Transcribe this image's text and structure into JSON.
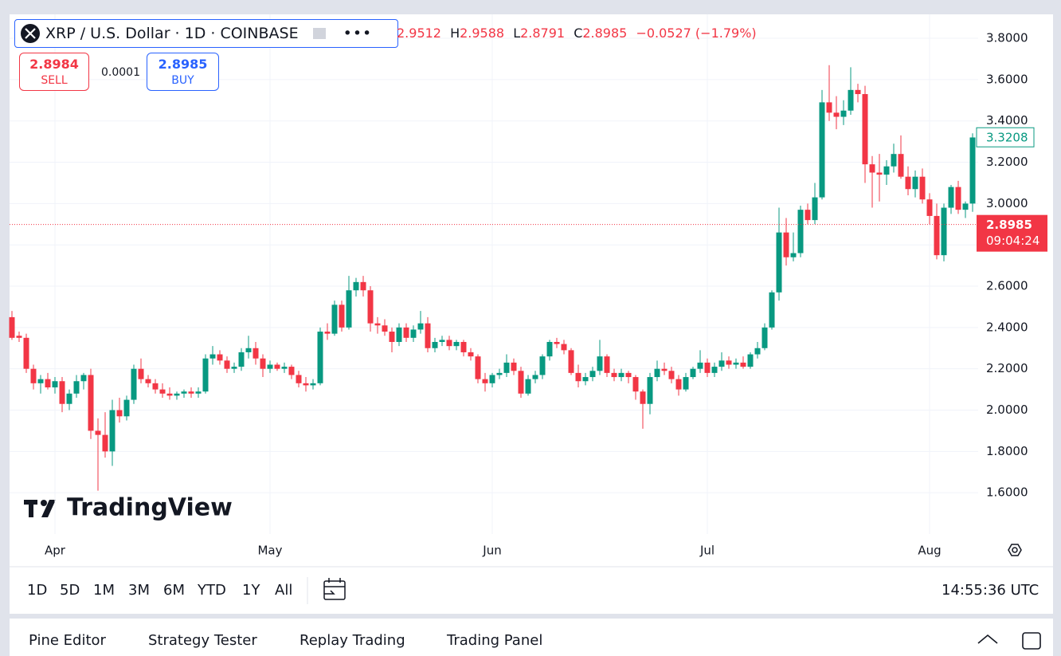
{
  "header": {
    "symbol": "XRP / U.S. Dollar · 1D · COINBASE",
    "open": "2.9512",
    "high_label": "H",
    "high": "2.9588",
    "low_label": "L",
    "low": "2.8791",
    "close_label": "C",
    "close": "2.8985",
    "change": "−0.0527 (−1.79%)"
  },
  "trade": {
    "sell_price": "2.8984",
    "sell": "SELL",
    "spread": "0.0001",
    "buy_price": "2.8985",
    "buy": "BUY"
  },
  "logo": "TradingView",
  "chart_data": {
    "type": "candlestick",
    "categories": [
      null,
      null,
      null,
      null,
      null,
      null,
      "Apr",
      null,
      null,
      null,
      null,
      null,
      null,
      null,
      null,
      null,
      null,
      null,
      null,
      null,
      null,
      null,
      null,
      null,
      null,
      null,
      null,
      null,
      null,
      null,
      null,
      null,
      null,
      null,
      null,
      null,
      "May",
      null,
      null,
      null,
      null,
      null,
      null,
      null,
      null,
      null,
      null,
      null,
      null,
      null,
      null,
      null,
      null,
      null,
      null,
      null,
      null,
      null,
      null,
      null,
      null,
      null,
      null,
      null,
      null,
      null,
      null,
      "Jun",
      null,
      null,
      null,
      null,
      null,
      null,
      null,
      null,
      null,
      null,
      null,
      null,
      null,
      null,
      null,
      null,
      null,
      null,
      null,
      null,
      null,
      null,
      null,
      null,
      null,
      null,
      null,
      null,
      null,
      "Jul",
      null,
      null,
      null,
      null,
      null,
      null,
      null,
      null,
      null,
      null,
      null,
      null,
      null,
      null,
      null,
      null,
      null,
      null,
      null,
      null,
      null,
      null,
      null,
      null,
      null,
      null,
      null,
      null,
      null,
      null,
      "Aug",
      null,
      null,
      null,
      null,
      null,
      null
    ],
    "open": [
      2.45,
      2.36,
      2.35,
      2.2,
      2.13,
      2.15,
      2.11,
      2.14,
      2.03,
      2.08,
      2.14,
      2.17,
      1.9,
      1.88,
      1.8,
      2.0,
      1.97,
      2.05,
      2.2,
      2.15,
      2.13,
      2.1,
      2.08,
      2.07,
      2.08,
      2.09,
      2.08,
      2.09,
      2.25,
      2.27,
      2.24,
      2.2,
      2.21,
      2.28,
      2.3,
      2.25,
      2.2,
      2.22,
      2.2,
      2.21,
      2.17,
      2.13,
      2.12,
      2.13,
      2.38,
      2.37,
      2.51,
      2.4,
      2.58,
      2.62,
      2.58,
      2.42,
      2.41,
      2.38,
      2.33,
      2.4,
      2.35,
      2.39,
      2.42,
      2.3,
      2.33,
      2.34,
      2.31,
      2.33,
      2.28,
      2.26,
      2.15,
      2.13,
      2.17,
      2.18,
      2.23,
      2.19,
      2.08,
      2.15,
      2.17,
      2.26,
      2.33,
      2.32,
      2.29,
      2.18,
      2.14,
      2.16,
      2.19,
      2.26,
      2.18,
      2.16,
      2.18,
      2.16,
      2.09,
      2.03,
      2.16,
      2.2,
      2.19,
      2.15,
      2.1,
      2.16,
      2.2,
      2.23,
      2.18,
      2.21,
      2.24,
      2.22,
      2.23,
      2.21,
      2.27,
      2.3,
      2.4,
      2.57,
      2.86,
      2.74,
      2.76,
      2.97,
      2.92,
      3.03,
      3.49,
      3.44,
      3.42,
      3.45,
      3.55,
      3.53,
      3.19,
      3.15,
      3.14,
      3.18,
      3.24,
      3.13,
      3.07,
      3.13,
      3.02,
      2.94,
      2.75,
      2.98,
      3.08,
      2.97,
      3.0
    ],
    "high": [
      2.48,
      2.38,
      2.37,
      2.22,
      2.17,
      2.18,
      2.16,
      2.16,
      2.1,
      2.17,
      2.18,
      2.2,
      1.96,
      1.99,
      2.05,
      2.06,
      2.07,
      2.22,
      2.25,
      2.17,
      2.15,
      2.13,
      2.11,
      2.09,
      2.1,
      2.11,
      2.11,
      2.27,
      2.31,
      2.29,
      2.26,
      2.23,
      2.3,
      2.36,
      2.33,
      2.27,
      2.24,
      2.23,
      2.23,
      2.22,
      2.19,
      2.16,
      2.15,
      2.4,
      2.42,
      2.53,
      2.53,
      2.65,
      2.64,
      2.65,
      2.6,
      2.45,
      2.44,
      2.4,
      2.42,
      2.42,
      2.41,
      2.48,
      2.45,
      2.35,
      2.36,
      2.36,
      2.34,
      2.34,
      2.3,
      2.27,
      2.18,
      2.18,
      2.2,
      2.27,
      2.25,
      2.21,
      2.17,
      2.19,
      2.27,
      2.34,
      2.35,
      2.34,
      2.3,
      2.22,
      2.18,
      2.21,
      2.34,
      2.27,
      2.2,
      2.2,
      2.19,
      2.17,
      2.1,
      2.18,
      2.24,
      2.23,
      2.21,
      2.17,
      2.18,
      2.21,
      2.29,
      2.25,
      2.23,
      2.28,
      2.26,
      2.25,
      2.26,
      2.28,
      2.33,
      2.42,
      2.58,
      2.98,
      2.93,
      2.86,
      2.99,
      3.0,
      3.1,
      3.55,
      3.67,
      3.52,
      3.5,
      3.66,
      3.58,
      3.57,
      3.23,
      3.24,
      3.21,
      3.29,
      3.33,
      3.18,
      3.16,
      3.17,
      3.05,
      3.0,
      3.0,
      3.09,
      3.11,
      3.01,
      3.34
    ],
    "low": [
      2.34,
      2.33,
      2.18,
      2.1,
      2.08,
      2.1,
      2.08,
      1.99,
      2.0,
      2.06,
      2.1,
      1.86,
      1.61,
      1.77,
      1.73,
      1.94,
      1.95,
      2.03,
      2.13,
      2.11,
      2.08,
      2.06,
      2.05,
      2.05,
      2.06,
      2.06,
      2.06,
      2.08,
      2.22,
      2.22,
      2.18,
      2.18,
      2.19,
      2.25,
      2.22,
      2.16,
      2.18,
      2.19,
      2.18,
      2.15,
      2.11,
      2.09,
      2.1,
      2.12,
      2.34,
      2.36,
      2.38,
      2.39,
      2.55,
      2.55,
      2.38,
      2.37,
      2.36,
      2.28,
      2.31,
      2.33,
      2.33,
      2.37,
      2.28,
      2.28,
      2.31,
      2.29,
      2.29,
      2.26,
      2.24,
      2.13,
      2.09,
      2.11,
      2.15,
      2.16,
      2.17,
      2.06,
      2.07,
      2.13,
      2.15,
      2.24,
      2.3,
      2.27,
      2.17,
      2.11,
      2.12,
      2.14,
      2.17,
      2.16,
      2.14,
      2.14,
      2.13,
      2.05,
      1.91,
      1.98,
      2.14,
      2.17,
      2.13,
      2.07,
      2.09,
      2.15,
      2.18,
      2.16,
      2.16,
      2.19,
      2.2,
      2.2,
      2.2,
      2.2,
      2.25,
      2.29,
      2.39,
      2.53,
      2.7,
      2.72,
      2.74,
      2.9,
      2.9,
      3.02,
      3.4,
      3.36,
      3.38,
      3.43,
      3.49,
      3.1,
      2.98,
      3.01,
      3.09,
      3.15,
      3.12,
      3.04,
      3.03,
      3.0,
      2.9,
      2.73,
      2.72,
      2.95,
      2.95,
      2.93,
      2.96
    ],
    "close": [
      2.35,
      2.35,
      2.2,
      2.13,
      2.15,
      2.11,
      2.14,
      2.03,
      2.08,
      2.14,
      2.17,
      1.9,
      1.88,
      1.8,
      2.0,
      1.97,
      2.05,
      2.2,
      2.15,
      2.13,
      2.1,
      2.08,
      2.07,
      2.08,
      2.09,
      2.08,
      2.09,
      2.25,
      2.27,
      2.24,
      2.2,
      2.21,
      2.28,
      2.3,
      2.25,
      2.2,
      2.22,
      2.2,
      2.21,
      2.17,
      2.13,
      2.12,
      2.13,
      2.38,
      2.37,
      2.51,
      2.4,
      2.58,
      2.62,
      2.58,
      2.42,
      2.41,
      2.38,
      2.33,
      2.4,
      2.35,
      2.39,
      2.42,
      2.3,
      2.33,
      2.34,
      2.31,
      2.33,
      2.28,
      2.26,
      2.15,
      2.13,
      2.17,
      2.18,
      2.23,
      2.19,
      2.08,
      2.15,
      2.17,
      2.26,
      2.33,
      2.32,
      2.29,
      2.18,
      2.14,
      2.16,
      2.19,
      2.26,
      2.18,
      2.16,
      2.18,
      2.16,
      2.09,
      2.03,
      2.16,
      2.2,
      2.19,
      2.15,
      2.1,
      2.16,
      2.2,
      2.23,
      2.18,
      2.21,
      2.24,
      2.22,
      2.23,
      2.21,
      2.27,
      2.3,
      2.4,
      2.57,
      2.86,
      2.74,
      2.76,
      2.97,
      2.92,
      3.03,
      3.49,
      3.44,
      3.42,
      3.45,
      3.55,
      3.53,
      3.19,
      3.15,
      3.14,
      3.18,
      3.24,
      3.13,
      3.07,
      3.13,
      3.02,
      2.94,
      2.75,
      2.98,
      3.08,
      2.97,
      3.0,
      3.32
    ],
    "up_color": "#089981",
    "down_color": "#f23645",
    "ylim": [
      1.4,
      3.916
    ],
    "yticks": [
      {
        "value": 1.6,
        "label": "1.6000"
      },
      {
        "value": 1.8,
        "label": "1.8000"
      },
      {
        "value": 2.0,
        "label": "2.0000"
      },
      {
        "value": 2.2,
        "label": "2.2000"
      },
      {
        "value": 2.4,
        "label": "2.4000"
      },
      {
        "value": 2.6,
        "label": "2.6000"
      },
      {
        "value": 2.8,
        "label": "2.8000"
      },
      {
        "value": 3.0,
        "label": "3.0000"
      },
      {
        "value": 3.2,
        "label": "3.2000"
      },
      {
        "value": 3.4,
        "label": "3.4000"
      },
      {
        "value": 3.6,
        "label": "3.6000"
      },
      {
        "value": 3.8,
        "label": "3.8000"
      }
    ],
    "grid": true,
    "last_price": 2.8985,
    "countdown": "09:04:24",
    "marker_price": 3.3208
  },
  "range_buttons": [
    "1D",
    "5D",
    "1M",
    "3M",
    "6M",
    "YTD",
    "1Y",
    "All"
  ],
  "clock": "14:55:36 UTC",
  "tabs": [
    "Pine Editor",
    "Strategy Tester",
    "Replay Trading",
    "Trading Panel"
  ]
}
